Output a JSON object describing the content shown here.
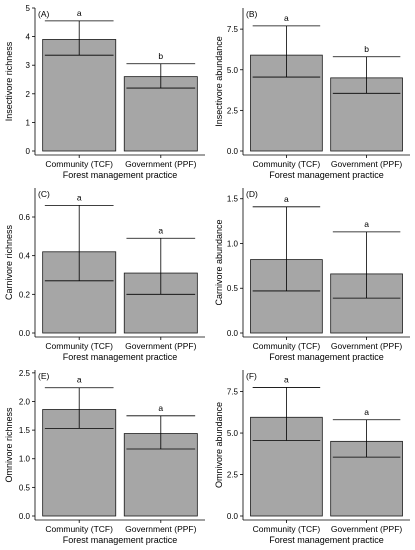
{
  "figure": {
    "panels": [
      {
        "label": "(A)",
        "chart_data": {
          "type": "bar",
          "categories": [
            "Community (TCF)",
            "Government (PPF)"
          ],
          "values": [
            3.9,
            2.6
          ],
          "error_low": [
            3.35,
            2.2
          ],
          "error_high": [
            4.55,
            3.05
          ],
          "significance": [
            "a",
            "b"
          ],
          "xlabel": "Forest management practice",
          "ylabel": "Insectivore richness",
          "ylim": [
            0,
            5
          ],
          "ticks": [
            0,
            1,
            2,
            3,
            4,
            5
          ],
          "tick_labels": [
            "0",
            "1",
            "2",
            "3",
            "4",
            "5"
          ],
          "bar_color": "#a6a6a6",
          "grid": false
        }
      },
      {
        "label": "(B)",
        "chart_data": {
          "type": "bar",
          "categories": [
            "Community (TCF)",
            "Government (PPF)"
          ],
          "values": [
            5.9,
            4.5
          ],
          "error_low": [
            4.55,
            3.55
          ],
          "error_high": [
            7.7,
            5.8
          ],
          "significance": [
            "a",
            "b"
          ],
          "xlabel": "Forest management practice",
          "ylabel": "Insectivore abundance",
          "ylim": [
            0,
            8.8
          ],
          "ticks": [
            0,
            2.5,
            5,
            7.5
          ],
          "tick_labels": [
            "0.0",
            "2.5",
            "5.0",
            "7.5"
          ],
          "bar_color": "#a6a6a6",
          "grid": false
        }
      },
      {
        "label": "(C)",
        "chart_data": {
          "type": "bar",
          "categories": [
            "Community (TCF)",
            "Government (PPF)"
          ],
          "values": [
            0.42,
            0.31
          ],
          "error_low": [
            0.27,
            0.2
          ],
          "error_high": [
            0.66,
            0.49
          ],
          "significance": [
            "a",
            "a"
          ],
          "xlabel": "Forest management practice",
          "ylabel": "Carnivore richness",
          "ylim": [
            0,
            0.75
          ],
          "ticks": [
            0,
            0.2,
            0.4,
            0.6
          ],
          "tick_labels": [
            "0.0",
            "0.2",
            "0.4",
            "0.6"
          ],
          "bar_color": "#a6a6a6",
          "grid": false
        }
      },
      {
        "label": "(D)",
        "chart_data": {
          "type": "bar",
          "categories": [
            "Community (TCF)",
            "Government (PPF)"
          ],
          "values": [
            0.82,
            0.66
          ],
          "error_low": [
            0.47,
            0.39
          ],
          "error_high": [
            1.41,
            1.13
          ],
          "significance": [
            "a",
            "a"
          ],
          "xlabel": "Forest management practice",
          "ylabel": "Carnivore abundance",
          "ylim": [
            0,
            1.62
          ],
          "ticks": [
            0,
            0.5,
            1,
            1.5
          ],
          "tick_labels": [
            "0.0",
            "0.5",
            "1.0",
            "1.5"
          ],
          "bar_color": "#a6a6a6",
          "grid": false
        }
      },
      {
        "label": "(E)",
        "chart_data": {
          "type": "bar",
          "categories": [
            "Community (TCF)",
            "Government (PPF)"
          ],
          "values": [
            1.86,
            1.44
          ],
          "error_low": [
            1.53,
            1.17
          ],
          "error_high": [
            2.24,
            1.75
          ],
          "significance": [
            "a",
            "a"
          ],
          "xlabel": "Forest management practice",
          "ylabel": "Omnivore richness",
          "ylim": [
            0,
            2.55
          ],
          "ticks": [
            0,
            0.5,
            1,
            1.5,
            2,
            2.5
          ],
          "tick_labels": [
            "0.0",
            "0.5",
            "1.0",
            "1.5",
            "2.0",
            "2.5"
          ],
          "bar_color": "#a6a6a6",
          "grid": false
        }
      },
      {
        "label": "(F)",
        "chart_data": {
          "type": "bar",
          "categories": [
            "Community (TCF)",
            "Government (PPF)"
          ],
          "values": [
            5.95,
            4.5
          ],
          "error_low": [
            4.55,
            3.55
          ],
          "error_high": [
            7.75,
            5.8
          ],
          "significance": [
            "a",
            "a"
          ],
          "xlabel": "Forest management practice",
          "ylabel": "Omnivore abundance",
          "ylim": [
            0,
            8.8
          ],
          "ticks": [
            0,
            2.5,
            5,
            7.5
          ],
          "tick_labels": [
            "0.0",
            "2.5",
            "5.0",
            "7.5"
          ],
          "bar_color": "#a6a6a6",
          "grid": false
        }
      }
    ]
  }
}
